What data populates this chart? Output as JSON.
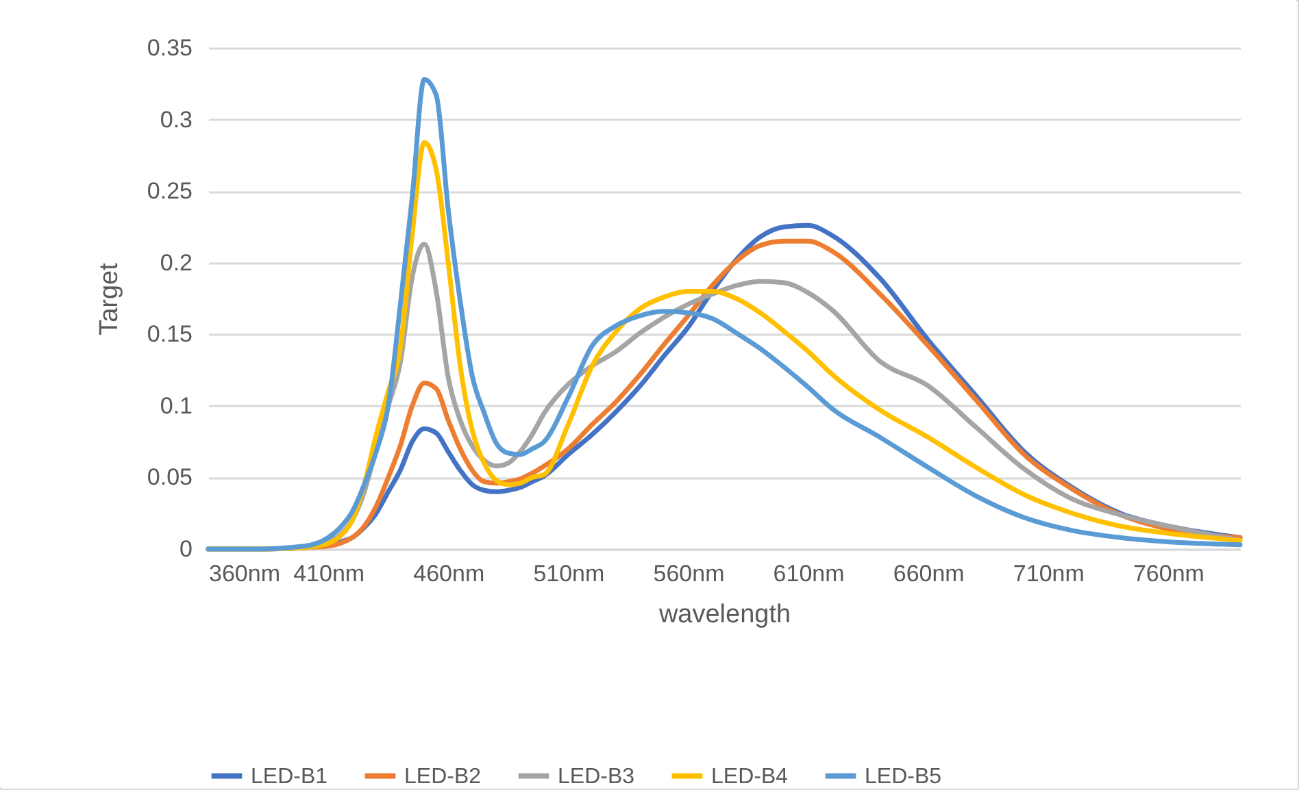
{
  "chart_data": {
    "type": "line",
    "xlabel": "wavelength",
    "ylabel": "Target",
    "x": [
      360,
      380,
      400,
      410,
      415,
      420,
      425,
      430,
      435,
      440,
      445,
      450,
      455,
      460,
      465,
      470,
      475,
      480,
      485,
      490,
      495,
      500,
      510,
      520,
      530,
      540,
      550,
      560,
      570,
      580,
      590,
      600,
      610,
      620,
      640,
      660,
      680,
      700,
      720,
      740,
      760,
      790
    ],
    "series": [
      {
        "name": "LED-B1",
        "color": "#4472c4",
        "values": [
          0,
          0,
          0.001,
          0.003,
          0.005,
          0.008,
          0.015,
          0.025,
          0.04,
          0.055,
          0.075,
          0.084,
          0.081,
          0.068,
          0.055,
          0.045,
          0.041,
          0.04,
          0.041,
          0.043,
          0.047,
          0.051,
          0.066,
          0.08,
          0.096,
          0.114,
          0.135,
          0.155,
          0.18,
          0.202,
          0.218,
          0.225,
          0.226,
          0.219,
          0.189,
          0.146,
          0.107,
          0.068,
          0.043,
          0.025,
          0.016,
          0.008
        ]
      },
      {
        "name": "LED-B2",
        "color": "#ed7d31",
        "values": [
          0,
          0,
          0.001,
          0.002,
          0.004,
          0.008,
          0.016,
          0.03,
          0.05,
          0.072,
          0.1,
          0.116,
          0.112,
          0.09,
          0.07,
          0.055,
          0.047,
          0.046,
          0.047,
          0.049,
          0.053,
          0.058,
          0.07,
          0.087,
          0.103,
          0.122,
          0.143,
          0.163,
          0.184,
          0.201,
          0.212,
          0.215,
          0.215,
          0.208,
          0.178,
          0.142,
          0.104,
          0.066,
          0.042,
          0.024,
          0.014,
          0.008
        ]
      },
      {
        "name": "LED-B3",
        "color": "#a5a5a5",
        "values": [
          0,
          0,
          0.001,
          0.005,
          0.01,
          0.02,
          0.04,
          0.07,
          0.1,
          0.13,
          0.19,
          0.213,
          0.18,
          0.12,
          0.09,
          0.072,
          0.062,
          0.058,
          0.06,
          0.068,
          0.08,
          0.095,
          0.115,
          0.128,
          0.138,
          0.151,
          0.162,
          0.171,
          0.178,
          0.184,
          0.187,
          0.186,
          0.179,
          0.167,
          0.131,
          0.114,
          0.085,
          0.056,
          0.035,
          0.024,
          0.016,
          0.006
        ]
      },
      {
        "name": "LED-B4",
        "color": "#ffc000",
        "values": [
          0,
          0,
          0.001,
          0.004,
          0.009,
          0.02,
          0.045,
          0.08,
          0.11,
          0.14,
          0.22,
          0.284,
          0.265,
          0.2,
          0.128,
          0.083,
          0.06,
          0.048,
          0.045,
          0.046,
          0.05,
          0.052,
          0.087,
          0.128,
          0.152,
          0.168,
          0.176,
          0.18,
          0.18,
          0.175,
          0.165,
          0.152,
          0.138,
          0.122,
          0.097,
          0.078,
          0.057,
          0.038,
          0.025,
          0.016,
          0.011,
          0.006
        ]
      },
      {
        "name": "LED-B5",
        "color": "#5b9bd5",
        "values": [
          0,
          0,
          0.002,
          0.008,
          0.015,
          0.026,
          0.045,
          0.068,
          0.1,
          0.17,
          0.246,
          0.328,
          0.317,
          0.237,
          0.173,
          0.121,
          0.095,
          0.074,
          0.067,
          0.066,
          0.07,
          0.075,
          0.106,
          0.142,
          0.156,
          0.163,
          0.166,
          0.165,
          0.161,
          0.151,
          0.14,
          0.127,
          0.113,
          0.098,
          0.078,
          0.057,
          0.037,
          0.022,
          0.013,
          0.008,
          0.005,
          0.003
        ]
      }
    ],
    "xlim": [
      360,
      790
    ],
    "xticks": [
      {
        "value": 360,
        "label": "360nm"
      },
      {
        "value": 410,
        "label": "410nm"
      },
      {
        "value": 460,
        "label": "460nm"
      },
      {
        "value": 510,
        "label": "510nm"
      },
      {
        "value": 560,
        "label": "560nm"
      },
      {
        "value": 610,
        "label": "610nm"
      },
      {
        "value": 660,
        "label": "660nm"
      },
      {
        "value": 710,
        "label": "710nm"
      },
      {
        "value": 760,
        "label": "760nm"
      }
    ],
    "ylim": [
      0,
      0.35
    ],
    "yticks": [
      0,
      0.05,
      0.1,
      0.15,
      0.2,
      0.25,
      0.3,
      0.35
    ],
    "grid": "y",
    "legend": "bottom",
    "line_style": "solid"
  }
}
